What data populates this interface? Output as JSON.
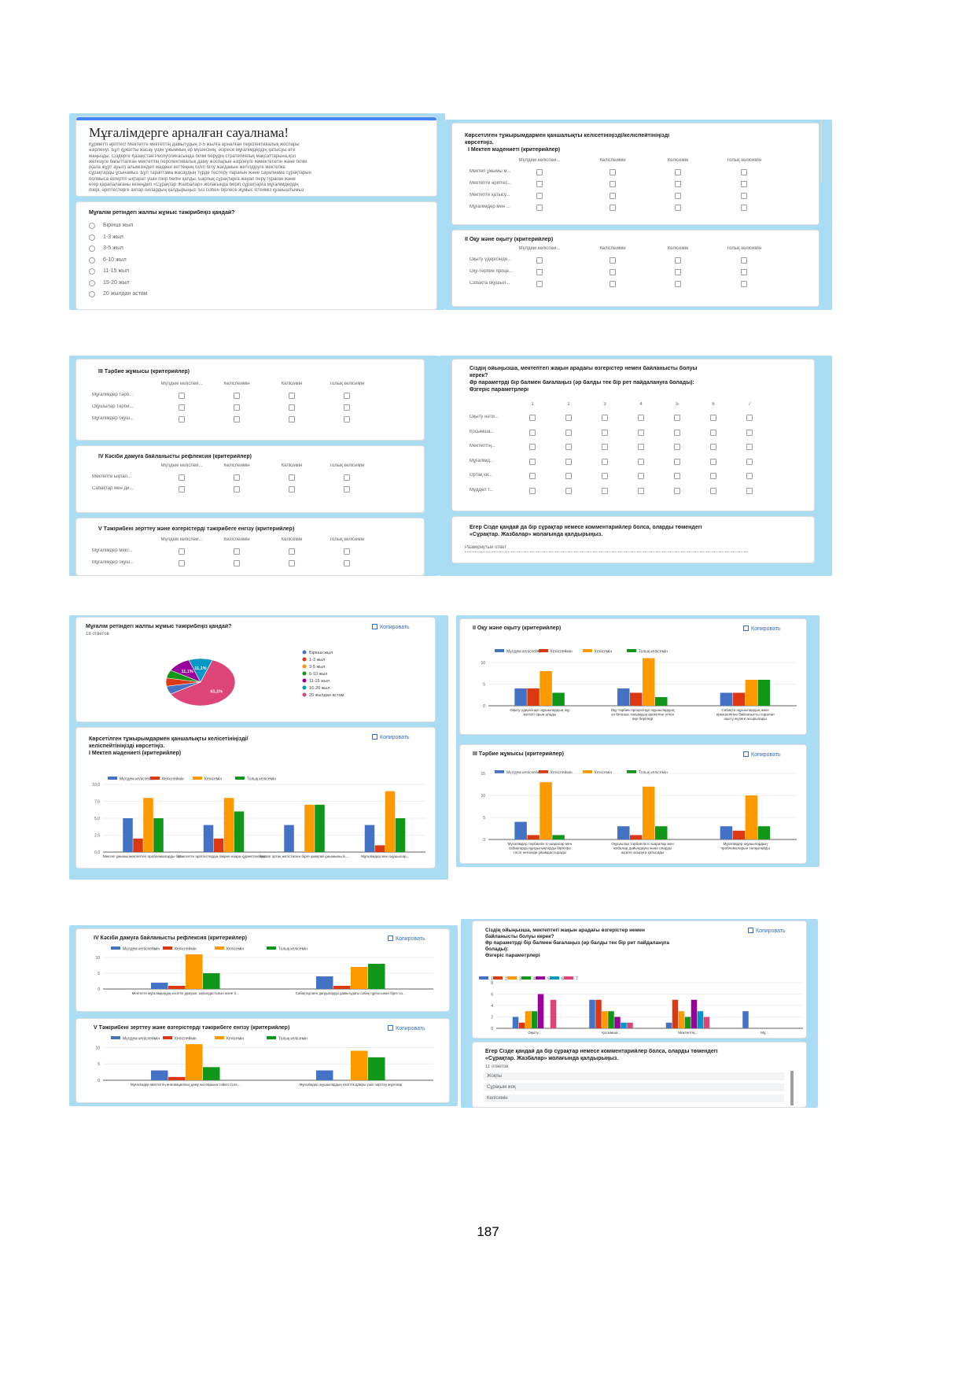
{
  "page_number": "187",
  "colors": {
    "blue": "#4472c4",
    "red": "#dc3912",
    "orange": "#ff9900",
    "green": "#109618",
    "purple": "#990099",
    "cyan": "#0099c6",
    "pink": "#dd4477",
    "frame": "#aadcf3",
    "link": "#1a73e8"
  },
  "likert": [
    "Мүлдем келіспей...",
    "Келіспеймін",
    "Келісемін",
    "Толық келісемін"
  ],
  "copy_label": "Копировать",
  "responses": "18 ответов",
  "form_header": {
    "title": "Мұғалімдерге арналған сауалнама!",
    "text": [
      "Құрметті әріптес! Мектепте мектептің дамытудың 3-5 жылға арналған перспективалық жоспары",
      "әзірленуі. Бұл құжатты жасау үшін ұжымның әр мүшесінің, әсіресе мұғалімдердің қатысуы өте",
      "маңызды. Сіздерге Қазақстан Республикасында білім берудің стратегиялық мақсаттарына,қол",
      "жеткізуге бағытталған мектептің перспективалық даму жоспарын әзірлеуге көмектесетін және білім",
      "(қала жұрт ауыл) алымізіндегі мәдени кеттеңнің біліп білу жағдайын жетілдіруге мектепке",
      "сұрақтарды ұсынамыз. Бұл тараптама жасаудың түрде тестеру парағын және сауалнама сұрақтарын",
      "болмыса өзгертіп ықтарат үшін пікір бөлін қалды. Барлық сұрақтарға жауап беру,тураған және",
      "егер қарапалағаны кезеңдегі «Сұрақтар Жазбалар» жолағында беріп сұрақтарға мұғалімдердің",
      "пікірі, әріптестерге айтар ойлардың қалдырыңыз. Біз сізбен бірлесе жұмыс істейміз қуаныштымыз"
    ]
  },
  "q_experience": {
    "title": "Мұғалім ретіндегі жалпы жұмыс тәжірибеңіз қандай?",
    "options": [
      "Бірінші жыл",
      "1-3 жыл",
      "3-5 жыл",
      "6-10 жыл",
      "11-15 жыл",
      "15-20 жыл",
      "20 жылдан астам"
    ]
  },
  "grid_1": {
    "title1": "Көрсетілген тұжырымдармен қаншалықты келісетініңізді/келіспейтініңізді",
    "title2": "көрсетіңіз.",
    "title3": "I Мектеп мәдениеті (критерийлер)",
    "rows": [
      "Мектеп ұжымы м...",
      "Мектепте әріптес...",
      "Мектепте қатысу...",
      "Мұғалімдер мен ..."
    ]
  },
  "grid_2": {
    "title": "II Оқу және оқыту (критерийлер)",
    "rows": [
      "Оқыту үдерісінде...",
      "Оқу-тәрбие проце...",
      "Сабақта оқушыл..."
    ]
  },
  "grid_3": {
    "title": "III Тәрбие жұмысы (критерийлер)",
    "rows": [
      "Мұғалімдер тәрб...",
      "Оқушылар тәрби...",
      "Мұғалімдер оқуш..."
    ]
  },
  "grid_4": {
    "title": "IV Кәсіби дамуға байланысты рефлексия (критерийлер)",
    "rows": [
      "Мектепте ықпал...",
      "Сабақтар мен ди..."
    ]
  },
  "grid_5": {
    "title": "V Тәжірибені зерттеу және өзгерістерді тәжірибеге енгізу (критерийлер)",
    "rows": [
      "Мұғалімдер мект...",
      "Мұғалімдер оқуш..."
    ]
  },
  "scale_grid": {
    "title1": "Сіздің ойыңызша, мектептегі жақын арадағы өзгерістер немен байланысты болуы",
    "title2": "керек?",
    "title3": "Әр параметрді бір балмен бағалаңыз (әр балды тек бір рет пайдалануға болады):",
    "title4": "Өзгеріс параметрлері",
    "cols": [
      "1",
      "2",
      "3",
      "4",
      "5",
      "6",
      "7"
    ],
    "rows": [
      "Оқыту нәти...",
      "Қосымша...",
      "Мектептің...",
      "Мұғалімд...",
      "Ортақ ки...",
      "Мүддел т..."
    ]
  },
  "comment_q": {
    "title1": "Егер Сізде қандай да бір сұрақтар немесе комментарийлер болса, оларды төмендегі",
    "title2": "«Сұрақтар. Жазбалар» жолағында қалдырыңыз.",
    "placeholder": "Развернутый ответ"
  },
  "comment_result": {
    "title1": "Егер Сізде қандай да бір сұрақтар немесе комментарийлер болса, оларды төмендегі",
    "title2": "«Сұрақтар. Жазбалар» жолағында қалдырыңыз.",
    "answers_count": "11 ответов",
    "answers": [
      "Жоқпы",
      "Сұрақым жоқ",
      "Келісемін"
    ]
  },
  "chart_data": [
    {
      "type": "pie",
      "title": "Мұғалім ретіндегі жалпы жұмыс тәжірибеңіз қандай?",
      "legend": [
        "Бірінші жыл",
        "1-3 жыл",
        "3-5 жыл",
        "6-10 жыл",
        "11-15 жыл",
        "16-20 жыл",
        "20 жылдан астам"
      ],
      "values": [
        5.6,
        5.6,
        0,
        5.6,
        11.1,
        11.1,
        61.1
      ],
      "labels": [
        "",
        "",
        "",
        "",
        "11,1%",
        "11,1%",
        "61,1%"
      ]
    },
    {
      "type": "bar",
      "title": "II Оқу және оқыту (критерийлер)",
      "legend_position": "top",
      "categories": [
        "Оқыту үдерісінде оқушылардың оқу\nжетісігі орын алады",
        "Оқу-тәрбие процесінде оқушылардың\nөз бетінше танымдық әрекетіне үлгек\nжүк беріледі",
        "Сабақта оқушылардың жеке\nерекшелігіне байланысты саралап\nоқыту жүзеге асырылады"
      ],
      "series": [
        {
          "name": "Мүлдем келіспеймін",
          "values": [
            4,
            4,
            3
          ]
        },
        {
          "name": "Келіспеймін",
          "values": [
            4,
            3,
            3
          ]
        },
        {
          "name": "Келісемін",
          "values": [
            8,
            11,
            6
          ]
        },
        {
          "name": "Толық келісемін",
          "values": [
            3,
            2,
            6
          ]
        }
      ],
      "ylim": [
        0,
        12
      ],
      "yticks": [
        "0",
        "5",
        "10"
      ]
    },
    {
      "type": "bar",
      "title": "Көрсетілген тұжырымдармен қаншалықты келісетініңізді/\nкеліспейтініңізді көрсетіңіз.\nI Мектеп мәдениеті (критерийлер)",
      "legend_position": "top",
      "categories": [
        "Мектеп ұжымы мектептегі проблемаларды бір...",
        "Мектепте әріптестердің пікірне өзара құрметпен қарайды",
        "Мектеп ортақ жетістікпен бірге қамқтай ұжымымы й...",
        "Мұғалімдер мен оқушылар..."
      ],
      "series": [
        {
          "name": "Мүлдем келіспеймін",
          "values": [
            5,
            4,
            4,
            4
          ]
        },
        {
          "name": "Келіспеймін",
          "values": [
            2,
            2,
            0,
            1
          ]
        },
        {
          "name": "Келісемін",
          "values": [
            8,
            8,
            7,
            9
          ]
        },
        {
          "name": "Толық келісемін",
          "values": [
            5,
            6,
            7,
            5
          ]
        }
      ],
      "ylim": [
        0,
        10
      ],
      "yticks": [
        "0,0",
        "2,5",
        "5,0",
        "7,5",
        "10,0"
      ]
    },
    {
      "type": "bar",
      "title": "III Тәрбие жұмысы (критерийлер)",
      "legend_position": "top",
      "categories": [
        "Мұғалімдер тәрбиелік іс-шаралар мен\nсабақтарды құндылықтарды біріктіре\nтәсіл негізінде ұйымдастырады",
        "Оқушылар тәрбиелік іс-шаралар мен\nжобалар дайындауға және оларды\nжүзеге асыруға қатысады",
        "Мұғалімдер оқушылардың\nпроблемаларын талқылайды"
      ],
      "series": [
        {
          "name": "Мүлдем келіспеймін",
          "values": [
            4,
            3,
            3
          ]
        },
        {
          "name": "Келіспеймін",
          "values": [
            1,
            1,
            2
          ]
        },
        {
          "name": "Келісемін",
          "values": [
            13,
            12,
            10
          ]
        },
        {
          "name": "Толық келісемін",
          "values": [
            1,
            3,
            3
          ]
        }
      ],
      "ylim": [
        0,
        15
      ],
      "yticks": [
        "0",
        "5",
        "10",
        "15"
      ]
    },
    {
      "type": "bar",
      "title": "IV Кәсіби дамуға байланысты рефлексия (критерийлер)",
      "legend_position": "top",
      "categories": [
        "Мектепте мұғалімдердің кәсіптік дамуын, ықпалдастығын және бағалаудың жүйелі көзқарас жасалған",
        "Сабақтар мен дағдыларды дамытудағы сабақ тұрғысынан бірге сабақты талқылау,рефлексия жасайды"
      ],
      "series": [
        {
          "name": "Мүлдем келіспеймін",
          "values": [
            2,
            4
          ]
        },
        {
          "name": "Келіспеймін",
          "values": [
            1,
            1
          ]
        },
        {
          "name": "Келісемін",
          "values": [
            11,
            7
          ]
        },
        {
          "name": "Толық келісемін",
          "values": [
            5,
            8
          ]
        }
      ],
      "ylim": [
        0,
        12
      ],
      "yticks": [
        "0",
        "5",
        "10"
      ]
    },
    {
      "type": "bar",
      "title": "V Тәжірибені зерттеу және өзгерістерді тәжірибеге енгізу (критерийлер)",
      "legend_position": "top",
      "categories": [
        "Мұғалімдер мектептің инновациялық даму жоспарына сәйкес (Lesson Study, Action Research және т.б.) зерттеу жұмысын жүргізеді",
        "Мұғалімдер оқушылардың кәсіптік дамуы үшін зерттеу жүргізеді"
      ],
      "series": [
        {
          "name": "Мүлдем келіспеймін",
          "values": [
            3,
            3
          ]
        },
        {
          "name": "Келіспеймін",
          "values": [
            1,
            0
          ]
        },
        {
          "name": "Келісемін",
          "values": [
            11,
            9
          ]
        },
        {
          "name": "Толық келісемін",
          "values": [
            4,
            7
          ]
        }
      ],
      "ylim": [
        0,
        12
      ],
      "yticks": [
        "0",
        "5",
        "10"
      ]
    },
    {
      "type": "bar",
      "title": "Сіздің ойыңызша, мектептегі жақын арадағы өзгерістер немен\nбайланысты болуы керек?\nӘр параметрді бір балмен бағалаңыз (әр балды тек бір рет пайдалануға\nболады):\nӨзгеріс параметрлері",
      "legend_position": "top",
      "categories": [
        "Оқыту...",
        "Қосымша...",
        "Мектептің...",
        "Мұ..."
      ],
      "series": [
        {
          "name": "1",
          "values": [
            2,
            5,
            1,
            3
          ]
        },
        {
          "name": "2",
          "values": [
            1,
            5,
            5,
            0
          ]
        },
        {
          "name": "3",
          "values": [
            3,
            3,
            3,
            0
          ]
        },
        {
          "name": "4",
          "values": [
            3,
            3,
            2,
            0
          ]
        },
        {
          "name": "5",
          "values": [
            6,
            2,
            5,
            0
          ]
        },
        {
          "name": "6",
          "values": [
            0,
            1,
            3,
            0
          ]
        },
        {
          "name": "7",
          "values": [
            5,
            1,
            2,
            0
          ]
        }
      ],
      "ylim": [
        0,
        8
      ],
      "yticks": [
        "0",
        "2",
        "4",
        "6",
        "8"
      ]
    }
  ]
}
